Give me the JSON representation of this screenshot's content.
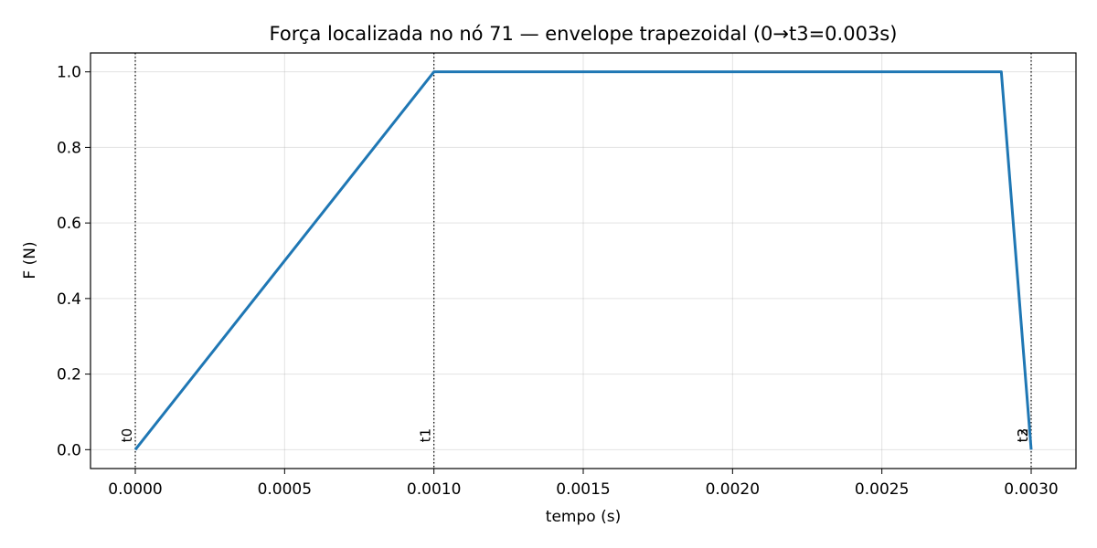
{
  "chart_data": {
    "type": "line",
    "title": "Força localizada no nó 71 — envelope trapezoidal (0→t3=0.003s)",
    "xlabel": "tempo (s)",
    "ylabel": "F (N)",
    "xlim": [
      -0.00015,
      0.00315
    ],
    "ylim": [
      -0.05,
      1.05
    ],
    "grid": true,
    "x_ticks": [
      0.0,
      0.0005,
      0.001,
      0.0015,
      0.002,
      0.0025,
      0.003
    ],
    "x_tick_labels": [
      "0.0000",
      "0.0005",
      "0.0010",
      "0.0015",
      "0.0020",
      "0.0025",
      "0.0030"
    ],
    "y_ticks": [
      0.0,
      0.2,
      0.4,
      0.6,
      0.8,
      1.0
    ],
    "y_tick_labels": [
      "0.0",
      "0.2",
      "0.4",
      "0.6",
      "0.8",
      "1.0"
    ],
    "series": [
      {
        "color": "#1f77b4",
        "x": [
          0.0,
          0.001,
          0.0029,
          0.003
        ],
        "y": [
          0.0,
          1.0,
          1.0,
          0.0
        ]
      }
    ],
    "markers": [
      {
        "x": 0.0,
        "label": "t0"
      },
      {
        "x": 0.001,
        "label": "t1"
      },
      {
        "x": 0.003,
        "label": "t2"
      },
      {
        "x": 0.003,
        "label": "t3"
      }
    ]
  }
}
